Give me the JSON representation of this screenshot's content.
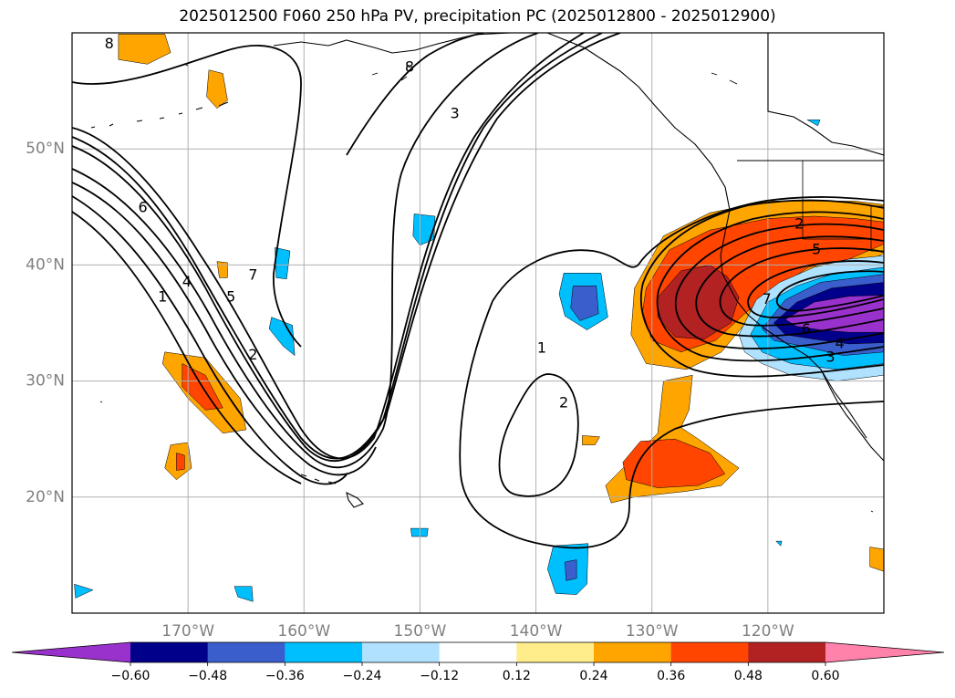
{
  "title": "2025012500 F060 250 hPa PV, precipitation PC (2025012800 - 2025012900)",
  "lat_labels": [
    {
      "lat": 50,
      "label": "50°N"
    },
    {
      "lat": 40,
      "label": "40°N"
    },
    {
      "lat": 30,
      "label": "30°N"
    },
    {
      "lat": 20,
      "label": "20°N"
    }
  ],
  "lon_labels": [
    {
      "lon": -170,
      "label": "170°W"
    },
    {
      "lon": -160,
      "label": "160°W"
    },
    {
      "lon": -150,
      "label": "150°W"
    },
    {
      "lon": -140,
      "label": "140°W"
    },
    {
      "lon": -130,
      "label": "130°W"
    },
    {
      "lon": -120,
      "label": "120°W"
    }
  ],
  "map_extent": {
    "lon_min": -180,
    "lon_max": -110,
    "lat_min": 10,
    "lat_max": 60
  },
  "colorbar": {
    "levels": [
      -0.72,
      -0.6,
      -0.48,
      -0.36,
      -0.24,
      -0.12,
      0.12,
      0.24,
      0.36,
      0.48,
      0.6,
      0.72
    ],
    "tick_labels": [
      "−0.60",
      "−0.48",
      "−0.36",
      "−0.24",
      "−0.12",
      "0.12",
      "0.24",
      "0.36",
      "0.48",
      "0.60"
    ],
    "colors": [
      "#9932cc",
      "#00008b",
      "#3a5fcd",
      "#00bfff",
      "#b0e2ff",
      "#ffffff",
      "#ffec8b",
      "#ffa500",
      "#ff4500",
      "#b22222",
      "#ff82ab"
    ],
    "extend": "both"
  },
  "pv_contour_labels": [
    {
      "text": "8",
      "lon": -176.8,
      "lat": 59.0
    },
    {
      "text": "8",
      "lon": -150.9,
      "lat": 57.0
    },
    {
      "text": "3",
      "lon": -147.0,
      "lat": 53.0
    },
    {
      "text": "6",
      "lon": -173.9,
      "lat": 44.9
    },
    {
      "text": "7",
      "lon": -164.4,
      "lat": 39.1
    },
    {
      "text": "4",
      "lon": -170.1,
      "lat": 38.5
    },
    {
      "text": "5",
      "lon": -166.3,
      "lat": 37.2
    },
    {
      "text": "1",
      "lon": -172.2,
      "lat": 37.2
    },
    {
      "text": "2",
      "lon": -164.4,
      "lat": 32.2
    },
    {
      "text": "1",
      "lon": -139.5,
      "lat": 32.8
    },
    {
      "text": "2",
      "lon": -137.6,
      "lat": 28.1
    },
    {
      "text": "2",
      "lon": -117.3,
      "lat": 43.5
    },
    {
      "text": "5",
      "lon": -115.8,
      "lat": 41.3
    },
    {
      "text": "7",
      "lon": -120.1,
      "lat": 37.0
    },
    {
      "text": "6",
      "lon": -116.7,
      "lat": 34.4
    },
    {
      "text": "4",
      "lon": -113.8,
      "lat": 33.2
    },
    {
      "text": "3",
      "lon": -114.6,
      "lat": 32.0
    }
  ],
  "precip_features": [
    {
      "fill": "#ffa500",
      "points": [
        [
          -176,
          59.9
        ],
        [
          -172,
          59.9
        ],
        [
          -171.5,
          58.3
        ],
        [
          -173.5,
          57.3
        ],
        [
          -176,
          57.7
        ]
      ]
    },
    {
      "fill": "#ffa500",
      "points": [
        [
          -168.2,
          56.8
        ],
        [
          -167,
          56.5
        ],
        [
          -166.6,
          54.2
        ],
        [
          -167.5,
          53.5
        ],
        [
          -168.4,
          54.5
        ]
      ]
    },
    {
      "fill": "#ffa500",
      "points": [
        [
          -172,
          32.5
        ],
        [
          -168.5,
          32
        ],
        [
          -165.5,
          28.5
        ],
        [
          -165,
          25.8
        ],
        [
          -167,
          25.5
        ],
        [
          -170,
          28.5
        ],
        [
          -172.2,
          31.5
        ]
      ]
    },
    {
      "fill": "#ff4500",
      "points": [
        [
          -170.5,
          31.5
        ],
        [
          -168.5,
          30.5
        ],
        [
          -167,
          27.7
        ],
        [
          -168.5,
          27.5
        ],
        [
          -170.5,
          29.5
        ]
      ]
    },
    {
      "fill": "#ffa500",
      "points": [
        [
          -171.5,
          24.5
        ],
        [
          -170,
          24.7
        ],
        [
          -169.7,
          22.5
        ],
        [
          -171,
          21.5
        ],
        [
          -172,
          22.5
        ]
      ]
    },
    {
      "fill": "#ff4500",
      "points": [
        [
          -171,
          23.8
        ],
        [
          -170.3,
          23.6
        ],
        [
          -170.3,
          22.4
        ],
        [
          -171,
          22.3
        ]
      ]
    },
    {
      "fill": "#ffa500",
      "points": [
        [
          -167.5,
          40.3
        ],
        [
          -166.6,
          40.2
        ],
        [
          -166.6,
          38.9
        ],
        [
          -167.3,
          38.9
        ]
      ]
    },
    {
      "fill": "#00bfff",
      "points": [
        [
          -162.5,
          41.5
        ],
        [
          -161.2,
          41.2
        ],
        [
          -161.5,
          38.8
        ],
        [
          -162.4,
          38.9
        ]
      ]
    },
    {
      "fill": "#00bfff",
      "points": [
        [
          -162.8,
          35.5
        ],
        [
          -161,
          34.8
        ],
        [
          -160.8,
          32.2
        ],
        [
          -161.8,
          33
        ],
        [
          -163,
          34.5
        ]
      ]
    },
    {
      "fill": "#00bfff",
      "points": [
        [
          -150.5,
          44.4
        ],
        [
          -148.7,
          44.2
        ],
        [
          -148.8,
          42.2
        ],
        [
          -150,
          41.7
        ],
        [
          -150.6,
          42.5
        ]
      ]
    },
    {
      "fill": "#00bfff",
      "points": [
        [
          -137.6,
          39.3
        ],
        [
          -134.4,
          39.3
        ],
        [
          -133.8,
          35.5
        ],
        [
          -135.6,
          34.4
        ],
        [
          -137.5,
          35.6
        ],
        [
          -138,
          37.5
        ]
      ]
    },
    {
      "fill": "#3a5fcd",
      "points": [
        [
          -136.8,
          38.2
        ],
        [
          -134.8,
          38.2
        ],
        [
          -134.6,
          35.8
        ],
        [
          -136.2,
          35.2
        ],
        [
          -137,
          36.3
        ]
      ]
    },
    {
      "fill": "#00bfff",
      "points": [
        [
          -138.5,
          15.8
        ],
        [
          -135.5,
          16
        ],
        [
          -135.6,
          12.5
        ],
        [
          -136.5,
          11.6
        ],
        [
          -138.3,
          11.7
        ],
        [
          -139,
          13.8
        ]
      ]
    },
    {
      "fill": "#3a5fcd",
      "points": [
        [
          -137.5,
          14.4
        ],
        [
          -136.5,
          14.6
        ],
        [
          -136.5,
          13
        ],
        [
          -137.4,
          12.8
        ]
      ]
    },
    {
      "fill": "#00bfff",
      "points": [
        [
          -150.8,
          17.3
        ],
        [
          -149.3,
          17.3
        ],
        [
          -149.4,
          16.6
        ],
        [
          -150.7,
          16.6
        ]
      ]
    },
    {
      "fill": "#00bfff",
      "points": [
        [
          -179.8,
          12.5
        ],
        [
          -178.2,
          12
        ],
        [
          -179.7,
          11.3
        ]
      ]
    },
    {
      "fill": "#00bfff",
      "points": [
        [
          -166,
          12.3
        ],
        [
          -164.5,
          12.3
        ],
        [
          -164.4,
          11
        ],
        [
          -165.7,
          11.4
        ]
      ]
    },
    {
      "fill": "#00bfff",
      "points": [
        [
          -119.3,
          16.2
        ],
        [
          -118.8,
          16.2
        ],
        [
          -118.9,
          15.8
        ]
      ]
    },
    {
      "fill": "#00bfff",
      "points": [
        [
          -116.6,
          52.5
        ],
        [
          -115.5,
          52.5
        ],
        [
          -115.7,
          52
        ]
      ]
    },
    {
      "fill": "#ffa500",
      "points": [
        [
          -110,
          15.5
        ],
        [
          -111.2,
          15.7
        ],
        [
          -111.2,
          14
        ],
        [
          -110,
          13.6
        ]
      ]
    },
    {
      "fill": "#ffa500",
      "points": [
        [
          -136,
          25.3
        ],
        [
          -134.5,
          25.2
        ],
        [
          -134.9,
          24.5
        ],
        [
          -136,
          24.5
        ]
      ]
    },
    {
      "fill": "#ffa500",
      "points": [
        [
          -129,
          30
        ],
        [
          -126.5,
          30.5
        ],
        [
          -126.8,
          27.5
        ],
        [
          -127.5,
          26
        ],
        [
          -126,
          25
        ],
        [
          -122.5,
          22.5
        ],
        [
          -124,
          21
        ],
        [
          -127,
          20.5
        ],
        [
          -131.5,
          20
        ],
        [
          -133.5,
          19.5
        ],
        [
          -134,
          21
        ],
        [
          -131.5,
          23.5
        ],
        [
          -129.5,
          25.5
        ]
      ]
    },
    {
      "fill": "#ff4500",
      "points": [
        [
          -131,
          24.8
        ],
        [
          -128,
          25
        ],
        [
          -125,
          23.8
        ],
        [
          -123.7,
          22
        ],
        [
          -126,
          21
        ],
        [
          -129.5,
          20.8
        ],
        [
          -132.2,
          21.5
        ],
        [
          -132.5,
          23
        ]
      ]
    },
    {
      "fill": "#ffa500",
      "points": [
        [
          -131.5,
          38
        ],
        [
          -129,
          42.5
        ],
        [
          -125,
          44.5
        ],
        [
          -120,
          45.5
        ],
        [
          -116,
          45.5
        ],
        [
          -112.5,
          45.5
        ],
        [
          -110,
          45.2
        ],
        [
          -110,
          41
        ],
        [
          -113,
          39.5
        ],
        [
          -116,
          38.5
        ],
        [
          -118.5,
          37.2
        ],
        [
          -121.5,
          35.5
        ],
        [
          -124,
          32.5
        ],
        [
          -127,
          31
        ],
        [
          -130.5,
          31.5
        ],
        [
          -131.8,
          34
        ]
      ]
    },
    {
      "fill": "#ff4500",
      "points": [
        [
          -130.5,
          38
        ],
        [
          -128.5,
          41.3
        ],
        [
          -125,
          43
        ],
        [
          -120,
          44
        ],
        [
          -116,
          44.2
        ],
        [
          -112.5,
          44
        ],
        [
          -110,
          43.7
        ],
        [
          -110,
          41.8
        ],
        [
          -113,
          40.5
        ],
        [
          -116.5,
          39.8
        ],
        [
          -119.5,
          37.8
        ],
        [
          -122,
          35.8
        ],
        [
          -124.5,
          33.5
        ],
        [
          -127.5,
          32.5
        ],
        [
          -130,
          33.5
        ],
        [
          -130.8,
          36
        ]
      ]
    },
    {
      "fill": "#b22222",
      "points": [
        [
          -129.5,
          37.2
        ],
        [
          -127.5,
          39.5
        ],
        [
          -125,
          40
        ],
        [
          -123.5,
          39
        ],
        [
          -122.5,
          37.2
        ],
        [
          -123.2,
          35
        ],
        [
          -125.5,
          33.6
        ],
        [
          -128,
          33.8
        ],
        [
          -129.5,
          35.5
        ]
      ]
    },
    {
      "fill": "#b0e2ff",
      "points": [
        [
          -122.5,
          34
        ],
        [
          -121,
          37
        ],
        [
          -119,
          38.5
        ],
        [
          -116,
          39.8
        ],
        [
          -113,
          40.5
        ],
        [
          -110,
          40.8
        ],
        [
          -110,
          30.5
        ],
        [
          -114,
          30
        ],
        [
          -118,
          30.5
        ],
        [
          -120.5,
          31.5
        ],
        [
          -122,
          32.5
        ]
      ]
    },
    {
      "fill": "#00bfff",
      "points": [
        [
          -121.5,
          34
        ],
        [
          -120,
          36.8
        ],
        [
          -117.5,
          38.2
        ],
        [
          -114.5,
          39.2
        ],
        [
          -110,
          39.8
        ],
        [
          -110,
          31.5
        ],
        [
          -114,
          31
        ],
        [
          -118,
          31.5
        ],
        [
          -120.5,
          32.5
        ]
      ]
    },
    {
      "fill": "#3a5fcd",
      "points": [
        [
          -120.5,
          34.5
        ],
        [
          -118.5,
          37
        ],
        [
          -115.5,
          38.5
        ],
        [
          -110,
          39.2
        ],
        [
          -110,
          32.5
        ],
        [
          -113.5,
          32.2
        ],
        [
          -117,
          33
        ],
        [
          -119.5,
          33.5
        ]
      ]
    },
    {
      "fill": "#00008b",
      "points": [
        [
          -119.5,
          35
        ],
        [
          -117.5,
          36.8
        ],
        [
          -114.5,
          38
        ],
        [
          -110,
          38.5
        ],
        [
          -110,
          33.3
        ],
        [
          -113,
          33.2
        ],
        [
          -116,
          33.6
        ],
        [
          -118.5,
          34
        ]
      ]
    },
    {
      "fill": "#9932cc",
      "points": [
        [
          -118.5,
          35.3
        ],
        [
          -116,
          36.8
        ],
        [
          -113,
          37.3
        ],
        [
          -110,
          37.4
        ],
        [
          -110,
          34.2
        ],
        [
          -113,
          34.2
        ],
        [
          -115.5,
          34.4
        ],
        [
          -117.5,
          34.7
        ]
      ]
    }
  ]
}
